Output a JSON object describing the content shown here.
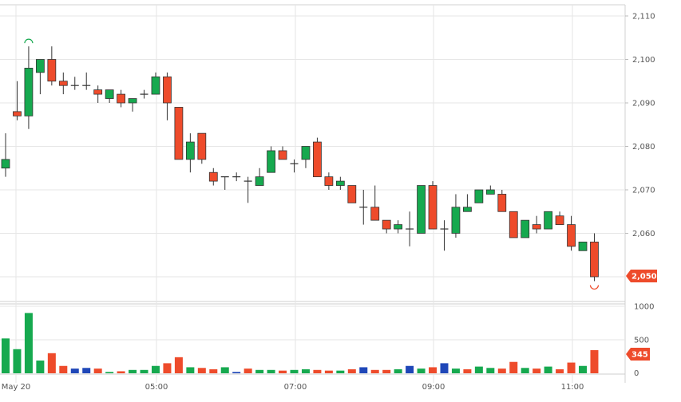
{
  "chart_data": {
    "type": "candlestick",
    "price_axis": {
      "min": 2050,
      "max": 2110,
      "ticks": [
        2060,
        2070,
        2080,
        2090,
        2100,
        2110
      ],
      "tick_labels": [
        "2,060",
        "2,070",
        "2,080",
        "2,090",
        "2,100",
        "2,110"
      ]
    },
    "volume_axis": {
      "min": 0,
      "max": 1000,
      "ticks": [
        0,
        500,
        1000
      ],
      "tick_labels": [
        "0",
        "500",
        "1000"
      ]
    },
    "time_labels": [
      "May 20",
      "05:00",
      "07:00",
      "09:00",
      "11:00"
    ],
    "last_price_label": "2,050",
    "last_volume_label": "345",
    "colors": {
      "up": "#16a94f",
      "down": "#ee4b2b",
      "wick": "#333333",
      "volume_up": "#16a94f",
      "volume_down": "#ee4b2b",
      "volume_neutral": "#1f47b8",
      "grid": "#e6e6e6"
    },
    "candles": [
      {
        "o": 2075,
        "h": 2083,
        "l": 2073,
        "c": 2077,
        "v": 520,
        "vc": "up"
      },
      {
        "o": 2088,
        "h": 2095,
        "l": 2086,
        "c": 2087,
        "v": 360,
        "vc": "up"
      },
      {
        "o": 2087,
        "h": 2103,
        "l": 2084,
        "c": 2098,
        "v": 900,
        "vc": "up"
      },
      {
        "o": 2097,
        "h": 2100,
        "l": 2092,
        "c": 2100,
        "v": 190,
        "vc": "up"
      },
      {
        "o": 2100,
        "h": 2103,
        "l": 2094,
        "c": 2095,
        "v": 300,
        "vc": "down"
      },
      {
        "o": 2095,
        "h": 2097,
        "l": 2092,
        "c": 2094,
        "v": 110,
        "vc": "down"
      },
      {
        "o": 2094,
        "h": 2096,
        "l": 2093,
        "c": 2094,
        "v": 70,
        "vc": "neutral"
      },
      {
        "o": 2094,
        "h": 2097,
        "l": 2093,
        "c": 2094,
        "v": 80,
        "vc": "neutral"
      },
      {
        "o": 2093,
        "h": 2094,
        "l": 2090,
        "c": 2092,
        "v": 70,
        "vc": "down"
      },
      {
        "o": 2091,
        "h": 2093,
        "l": 2090,
        "c": 2093,
        "v": 20,
        "vc": "up"
      },
      {
        "o": 2092,
        "h": 2093,
        "l": 2089,
        "c": 2090,
        "v": 30,
        "vc": "down"
      },
      {
        "o": 2090,
        "h": 2091,
        "l": 2088,
        "c": 2091,
        "v": 50,
        "vc": "up"
      },
      {
        "o": 2092,
        "h": 2093,
        "l": 2091,
        "c": 2092,
        "v": 50,
        "vc": "up"
      },
      {
        "o": 2092,
        "h": 2097,
        "l": 2092,
        "c": 2096,
        "v": 110,
        "vc": "up"
      },
      {
        "o": 2096,
        "h": 2097,
        "l": 2086,
        "c": 2090,
        "v": 150,
        "vc": "down"
      },
      {
        "o": 2089,
        "h": 2089,
        "l": 2077,
        "c": 2077,
        "v": 240,
        "vc": "down"
      },
      {
        "o": 2077,
        "h": 2083,
        "l": 2074,
        "c": 2081,
        "v": 90,
        "vc": "up"
      },
      {
        "o": 2083,
        "h": 2083,
        "l": 2076,
        "c": 2077,
        "v": 80,
        "vc": "down"
      },
      {
        "o": 2074,
        "h": 2075,
        "l": 2071,
        "c": 2072,
        "v": 60,
        "vc": "down"
      },
      {
        "o": 2073,
        "h": 2073,
        "l": 2070,
        "c": 2073,
        "v": 90,
        "vc": "up"
      },
      {
        "o": 2073,
        "h": 2074,
        "l": 2072,
        "c": 2073,
        "v": 20,
        "vc": "neutral"
      },
      {
        "o": 2072,
        "h": 2073,
        "l": 2067,
        "c": 2072,
        "v": 70,
        "vc": "down"
      },
      {
        "o": 2071,
        "h": 2075,
        "l": 2071,
        "c": 2073,
        "v": 50,
        "vc": "up"
      },
      {
        "o": 2074,
        "h": 2080,
        "l": 2074,
        "c": 2079,
        "v": 50,
        "vc": "up"
      },
      {
        "o": 2079,
        "h": 2080,
        "l": 2077,
        "c": 2077,
        "v": 40,
        "vc": "down"
      },
      {
        "o": 2076,
        "h": 2077,
        "l": 2074,
        "c": 2076,
        "v": 50,
        "vc": "up"
      },
      {
        "o": 2077,
        "h": 2080,
        "l": 2075,
        "c": 2080,
        "v": 60,
        "vc": "up"
      },
      {
        "o": 2081,
        "h": 2082,
        "l": 2073,
        "c": 2073,
        "v": 50,
        "vc": "down"
      },
      {
        "o": 2073,
        "h": 2074,
        "l": 2070,
        "c": 2071,
        "v": 40,
        "vc": "down"
      },
      {
        "o": 2071,
        "h": 2073,
        "l": 2070,
        "c": 2072,
        "v": 40,
        "vc": "up"
      },
      {
        "o": 2071,
        "h": 2071,
        "l": 2067,
        "c": 2067,
        "v": 60,
        "vc": "down"
      },
      {
        "o": 2066,
        "h": 2070,
        "l": 2062,
        "c": 2066,
        "v": 90,
        "vc": "neutral"
      },
      {
        "o": 2066,
        "h": 2071,
        "l": 2063,
        "c": 2063,
        "v": 50,
        "vc": "down"
      },
      {
        "o": 2063,
        "h": 2063,
        "l": 2060,
        "c": 2061,
        "v": 50,
        "vc": "down"
      },
      {
        "o": 2061,
        "h": 2063,
        "l": 2060,
        "c": 2062,
        "v": 60,
        "vc": "up"
      },
      {
        "o": 2061,
        "h": 2065,
        "l": 2057,
        "c": 2061,
        "v": 110,
        "vc": "neutral"
      },
      {
        "o": 2060,
        "h": 2071,
        "l": 2060,
        "c": 2071,
        "v": 70,
        "vc": "up"
      },
      {
        "o": 2071,
        "h": 2072,
        "l": 2061,
        "c": 2061,
        "v": 90,
        "vc": "down"
      },
      {
        "o": 2061,
        "h": 2063,
        "l": 2056,
        "c": 2061,
        "v": 150,
        "vc": "neutral"
      },
      {
        "o": 2060,
        "h": 2069,
        "l": 2059,
        "c": 2066,
        "v": 70,
        "vc": "up"
      },
      {
        "o": 2065,
        "h": 2069,
        "l": 2065,
        "c": 2066,
        "v": 60,
        "vc": "down"
      },
      {
        "o": 2067,
        "h": 2070,
        "l": 2067,
        "c": 2070,
        "v": 100,
        "vc": "up"
      },
      {
        "o": 2069,
        "h": 2071,
        "l": 2069,
        "c": 2070,
        "v": 80,
        "vc": "up"
      },
      {
        "o": 2069,
        "h": 2070,
        "l": 2065,
        "c": 2065,
        "v": 70,
        "vc": "down"
      },
      {
        "o": 2065,
        "h": 2065,
        "l": 2059,
        "c": 2059,
        "v": 170,
        "vc": "down"
      },
      {
        "o": 2059,
        "h": 2063,
        "l": 2059,
        "c": 2063,
        "v": 80,
        "vc": "up"
      },
      {
        "o": 2062,
        "h": 2064,
        "l": 2060,
        "c": 2061,
        "v": 70,
        "vc": "down"
      },
      {
        "o": 2061,
        "h": 2065,
        "l": 2061,
        "c": 2065,
        "v": 100,
        "vc": "up"
      },
      {
        "o": 2064,
        "h": 2065,
        "l": 2062,
        "c": 2062,
        "v": 60,
        "vc": "down"
      },
      {
        "o": 2062,
        "h": 2064,
        "l": 2056,
        "c": 2057,
        "v": 160,
        "vc": "down"
      },
      {
        "o": 2056,
        "h": 2058,
        "l": 2056,
        "c": 2058,
        "v": 110,
        "vc": "up"
      },
      {
        "o": 2058,
        "h": 2060,
        "l": 2049,
        "c": 2050,
        "v": 345,
        "vc": "down"
      }
    ]
  }
}
